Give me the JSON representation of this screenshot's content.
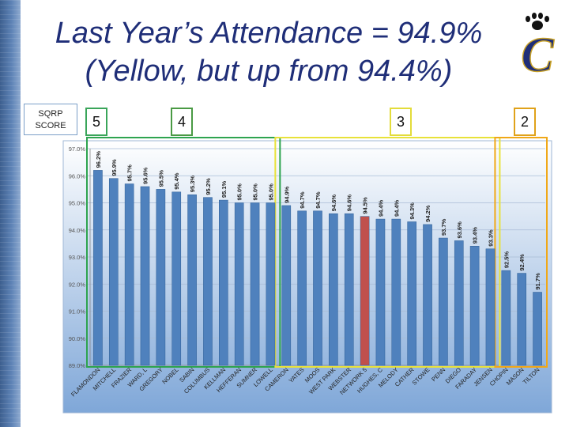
{
  "title": {
    "line1": "Last Year’s Attendance = 94.9%",
    "line2": "(Yellow, but up from 94.4%)"
  },
  "sqrp_label": {
    "line1": "SQRP",
    "line2": "SCORE"
  },
  "score_boxes": [
    {
      "label": "5",
      "color": "#2ea44f"
    },
    {
      "label": "4",
      "color": "#3c9a3c"
    },
    {
      "label": "3",
      "color": "#e8e23a"
    },
    {
      "label": "2",
      "color": "#f0a818"
    }
  ],
  "logo_letter": "C",
  "colors": {
    "bar": "#4f81bd",
    "highlight_bar": "#c0504d",
    "chart_bg_top": "#ffffff",
    "chart_bg_bottom": "#7fa7d8",
    "title": "#1f2e78"
  },
  "chart_data": {
    "type": "bar",
    "ylim": [
      89.0,
      97.0
    ],
    "yticks": [
      "89.0%",
      "90.0%",
      "91.0%",
      "92.0%",
      "93.0%",
      "94.0%",
      "95.0%",
      "96.0%",
      "97.0%"
    ],
    "grid": true,
    "categories": [
      "FLAMONDON",
      "MITCHELL",
      "FRAZIER",
      "WARD, L",
      "GREGORY",
      "NOBEL",
      "SABIN",
      "COLUMBUS",
      "KELLMAN",
      "HEFFERAN",
      "SUMNER",
      "LOWELL",
      "CAMERON",
      "YATES",
      "MOOS",
      "WEST PARK",
      "WEBSTER",
      "NETWORK 5",
      "HUGHES, C",
      "MELODY",
      "CATHER",
      "STOWE",
      "PENN",
      "DIEGO",
      "FARADAY",
      "JENSEN",
      "CHOPIN",
      "MASON",
      "TILTON"
    ],
    "values": [
      96.2,
      95.9,
      95.7,
      95.6,
      95.5,
      95.4,
      95.3,
      95.2,
      95.1,
      95.0,
      95.0,
      95.0,
      94.9,
      94.7,
      94.7,
      94.6,
      94.6,
      94.5,
      94.4,
      94.4,
      94.3,
      94.2,
      93.7,
      93.6,
      93.4,
      93.3,
      92.5,
      92.4,
      91.7
    ],
    "data_labels": [
      "96.2%",
      "95.9%",
      "95.7%",
      "95.6%",
      "95.5%",
      "95.4%",
      "95.3%",
      "95.2%",
      "95.1%",
      "95.0%",
      "95.0%",
      "95.0%",
      "94.9%",
      "94.7%",
      "94.7%",
      "94.6%",
      "94.6%",
      "94.5%",
      "94.4%",
      "94.4%",
      "94.3%",
      "94.2%",
      "93.7%",
      "93.6%",
      "93.4%",
      "93.3%",
      "92.5%",
      "92.4%",
      "91.7%"
    ],
    "highlight_index": 17,
    "groups": [
      {
        "score": "5",
        "start": 0,
        "end": 11,
        "color": "#2ea44f"
      },
      {
        "score": "3",
        "start": 12,
        "end": 25,
        "color": "#e8e23a"
      },
      {
        "score": "2",
        "start": 26,
        "end": 28,
        "color": "#f0a818"
      }
    ]
  }
}
